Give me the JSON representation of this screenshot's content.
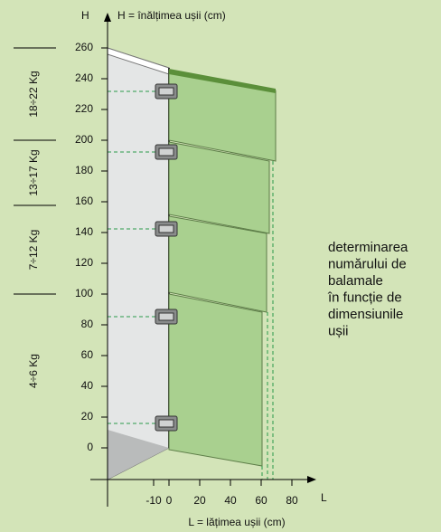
{
  "axes": {
    "y_title": "H",
    "y_caption": "H = înălțimea ușii (cm)",
    "x_title": "L",
    "x_caption": "L = lățimea ușii (cm)",
    "y_ticks": [
      260,
      240,
      220,
      200,
      180,
      160,
      140,
      120,
      100,
      80,
      60,
      40,
      20,
      0
    ],
    "x_ticks": [
      -10,
      0,
      20,
      40,
      60,
      80
    ]
  },
  "weights": [
    "18÷22 Kg",
    "13÷17 Kg",
    "7÷12 Kg",
    "4÷6 Kg"
  ],
  "note": [
    "determinarea",
    "numărului de",
    "balamale",
    "în funcție de",
    "dimensiunile",
    "ușii"
  ]
}
